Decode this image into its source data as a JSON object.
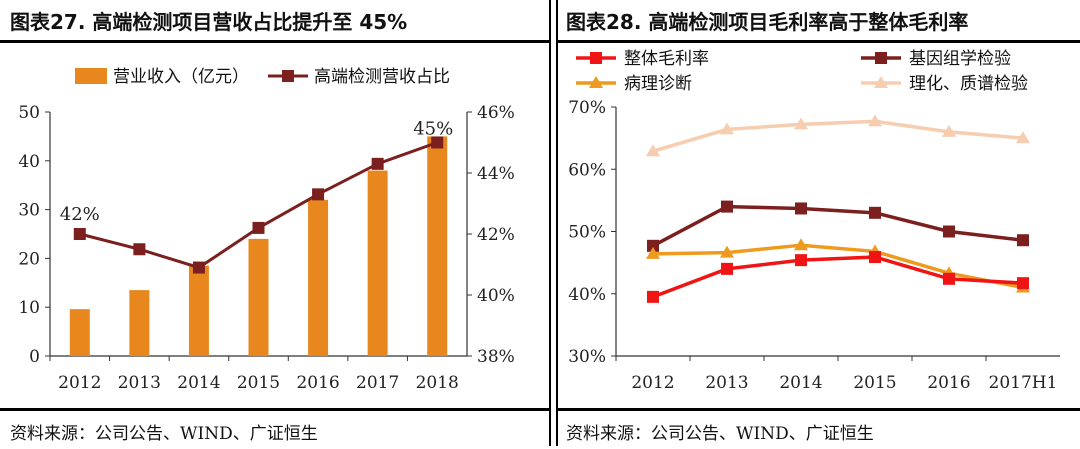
{
  "panels": {
    "left": {
      "title": "图表27.  高端检测项目营收占比提升至 45%",
      "source": "资料来源：公司公告、WIND、广证恒生"
    },
    "right": {
      "title": "图表28.  高端检测项目毛利率高于整体毛利率",
      "source": "资料来源：公司公告、WIND、广证恒生"
    }
  },
  "chart_data": [
    {
      "type": "bar",
      "title": "高端检测项目营收占比提升至 45%",
      "categories": [
        "2012",
        "2013",
        "2014",
        "2015",
        "2016",
        "2017",
        "2018"
      ],
      "ylim": [
        0,
        50
      ],
      "yticks": [
        "0",
        "10",
        "20",
        "30",
        "40",
        "50"
      ],
      "y2lim": [
        38,
        46
      ],
      "y2ticks": [
        "38%",
        "40%",
        "42%",
        "44%",
        "46%"
      ],
      "legend_position": "top",
      "series": [
        {
          "name": "营业收入（亿元）",
          "type": "bar",
          "axis": "left",
          "color": "#E8871E",
          "values": [
            9.6,
            13.5,
            18.5,
            24,
            32,
            38,
            45
          ]
        },
        {
          "name": "高端检测营收占比",
          "type": "line",
          "axis": "right",
          "color": "#7B1F1F",
          "values": [
            42.0,
            41.5,
            40.9,
            42.2,
            43.3,
            44.3,
            45.0
          ]
        }
      ],
      "annotations": [
        "42%",
        "45%"
      ]
    },
    {
      "type": "line",
      "title": "高端检测项目毛利率高于整体毛利率",
      "categories": [
        "2012",
        "2013",
        "2014",
        "2015",
        "2016",
        "2017H1"
      ],
      "ylim": [
        30,
        70
      ],
      "yticks": [
        "30%",
        "40%",
        "50%",
        "60%",
        "70%"
      ],
      "legend_position": "top",
      "series": [
        {
          "name": "整体毛利率",
          "color": "#F01414",
          "values": [
            39.5,
            44.0,
            45.4,
            45.9,
            42.4,
            41.7
          ]
        },
        {
          "name": "基因组学检验",
          "color": "#7B1F1F",
          "values": [
            47.7,
            54.0,
            53.7,
            53.0,
            50.0,
            48.6
          ]
        },
        {
          "name": "病理诊断",
          "color": "#EE9A1E",
          "values": [
            46.4,
            46.6,
            47.8,
            46.8,
            43.3,
            41.0
          ]
        },
        {
          "name": "理化、质谱检验",
          "color": "#F7CDB0",
          "values": [
            62.9,
            66.4,
            67.2,
            67.7,
            66.0,
            65.0
          ]
        }
      ]
    }
  ]
}
